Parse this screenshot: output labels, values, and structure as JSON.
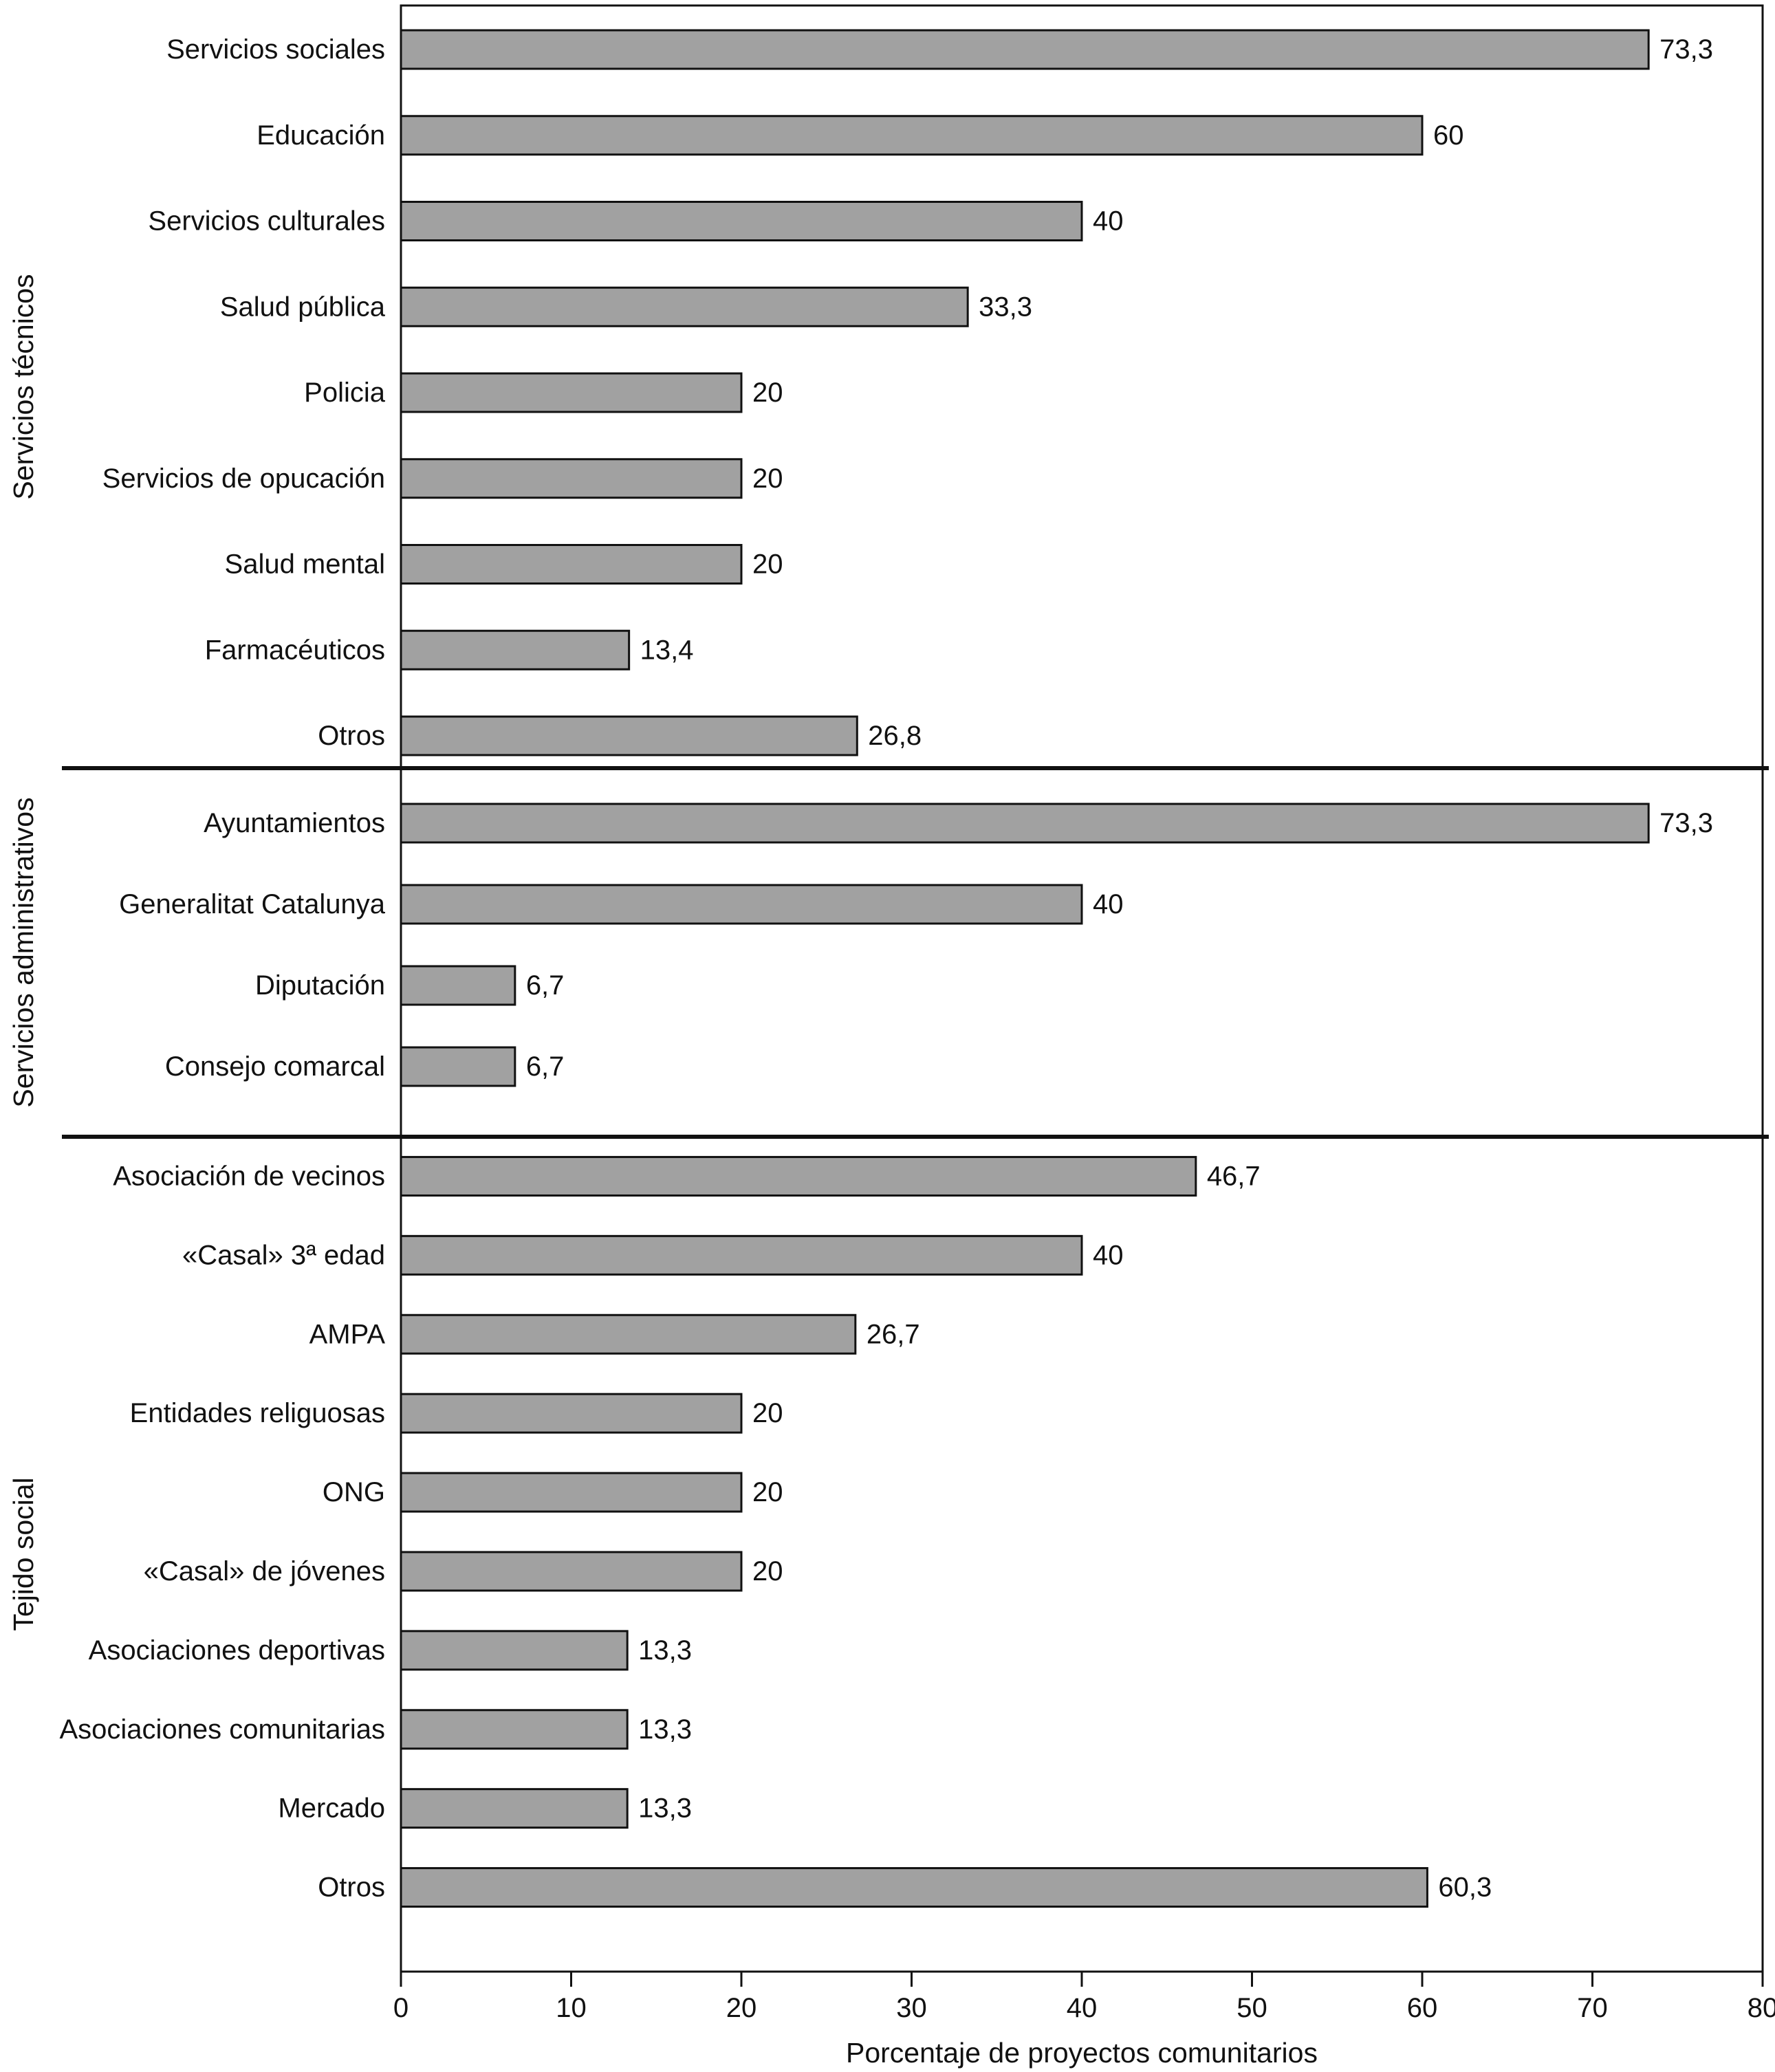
{
  "chart_data": {
    "type": "bar",
    "orientation": "horizontal",
    "title": "",
    "xlabel": "Porcentaje de proyectos comunitarios",
    "ylabel": "",
    "xlim": [
      0,
      80
    ],
    "x_ticks": [
      0,
      10,
      20,
      30,
      40,
      50,
      60,
      70,
      80
    ],
    "x_tick_labels": [
      "0",
      "10",
      "20",
      "30",
      "40",
      "50",
      "60",
      "70",
      "80"
    ],
    "grid": false,
    "legend": false,
    "bar_color": "#a1a1a1",
    "bar_border_color": "#111111",
    "divider_color": "#111111",
    "groups": [
      {
        "name": "Servicios técnicos",
        "categories": [
          "Servicios sociales",
          "Educación",
          "Servicios culturales",
          "Salud pública",
          "Policia",
          "Servicios de opucación",
          "Salud mental",
          "Farmacéuticos",
          "Otros"
        ],
        "values": [
          73.3,
          60,
          40,
          33.3,
          20,
          20,
          20,
          13.4,
          26.8
        ],
        "value_labels": [
          "73,3",
          "60",
          "40",
          "33,3",
          "20",
          "20",
          "20",
          "13,4",
          "26,8"
        ]
      },
      {
        "name": "Servicios administrativos",
        "categories": [
          "Ayuntamientos",
          "Generalitat Catalunya",
          "Diputación",
          "Consejo comarcal"
        ],
        "values": [
          73.3,
          40,
          6.7,
          6.7
        ],
        "value_labels": [
          "73,3",
          "40",
          "6,7",
          "6,7"
        ]
      },
      {
        "name": "Tejido social",
        "categories": [
          "Asociación de vecinos",
          "«Casal» 3ª edad",
          "AMPA",
          "Entidades religuosas",
          "ONG",
          "«Casal» de jóvenes",
          "Asociaciones deportivas",
          "Asociaciones comunitarias",
          "Mercado",
          "Otros"
        ],
        "values": [
          46.7,
          40,
          26.7,
          20,
          20,
          20,
          13.3,
          13.3,
          13.3,
          60.3
        ],
        "value_labels": [
          "46,7",
          "40",
          "26,7",
          "20",
          "20",
          "20",
          "13,3",
          "13,3",
          "13,3",
          "60,3"
        ]
      }
    ]
  }
}
